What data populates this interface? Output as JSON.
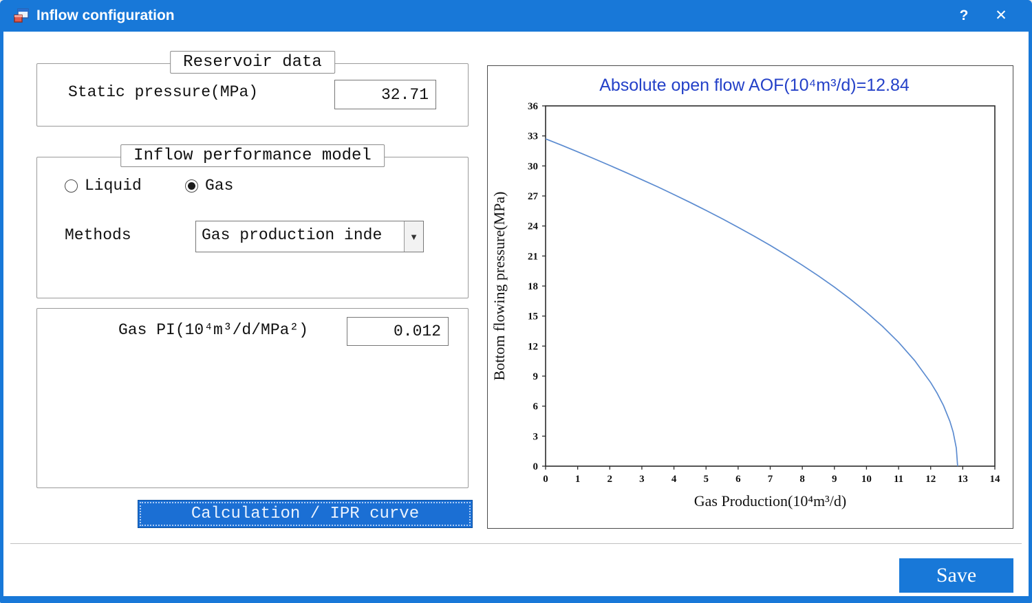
{
  "window": {
    "title": "Inflow configuration",
    "help": "?",
    "close": "✕"
  },
  "reservoir": {
    "legend": "Reservoir data",
    "static_pressure_label": "Static pressure(MPa)",
    "static_pressure_value": "32.71"
  },
  "inflow_model": {
    "legend": "Inflow performance model",
    "liquid_label": "Liquid",
    "gas_label": "Gas",
    "methods_label": "Methods",
    "methods_value": "Gas production inde"
  },
  "gas_pi": {
    "label": "Gas PI(10⁴m³/d/MPa²)",
    "value": "0.012"
  },
  "actions": {
    "calculate_label": "Calculation / IPR curve",
    "save_label": "Save"
  },
  "chart_data": {
    "type": "line",
    "title": "Absolute open flow AOF(10⁴m³/d)=12.84",
    "xlabel": "Gas Production(10⁴m³/d)",
    "ylabel": "Bottom flowing pressure(MPa)",
    "aof": 12.84,
    "xlim": [
      0,
      14
    ],
    "ylim": [
      0,
      36
    ],
    "xticks": [
      0,
      1,
      2,
      3,
      4,
      5,
      6,
      7,
      8,
      9,
      10,
      11,
      12,
      13,
      14
    ],
    "yticks": [
      0,
      3,
      6,
      9,
      12,
      15,
      18,
      21,
      24,
      27,
      30,
      33,
      36
    ],
    "grid": false,
    "legend_position": "none",
    "line_color": "#5b8bd0",
    "series": [
      {
        "name": "IPR curve",
        "x": [
          0,
          0.5,
          1,
          1.5,
          2,
          2.5,
          3,
          3.5,
          4,
          4.5,
          5,
          5.5,
          6,
          6.5,
          7,
          7.5,
          8,
          8.5,
          9,
          9.5,
          10,
          10.5,
          11,
          11.5,
          12,
          12.2,
          12.4,
          12.6,
          12.7,
          12.8,
          12.84
        ],
        "y": [
          32.71,
          32.07,
          31.41,
          30.74,
          30.05,
          29.35,
          28.63,
          27.9,
          27.14,
          26.36,
          25.56,
          24.73,
          23.87,
          22.98,
          22.06,
          21.09,
          20.08,
          19.02,
          17.89,
          16.68,
          15.38,
          13.96,
          12.38,
          10.56,
          8.36,
          7.3,
          6.05,
          4.47,
          3.41,
          1.81,
          0
        ]
      }
    ]
  }
}
